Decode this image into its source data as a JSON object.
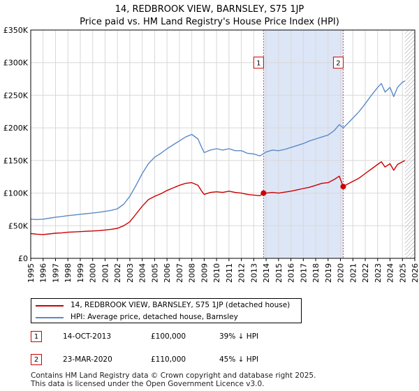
{
  "header": {
    "title_line1": "14, REDBROOK VIEW, BARNSLEY, S75 1JP",
    "title_line2": "Price paid vs. HM Land Registry's House Price Index (HPI)"
  },
  "colors": {
    "red": "#cc0000",
    "blue": "#5b8ac6",
    "shade": "#dde6f7",
    "grid": "#d8d8d8",
    "hatch": "#999999"
  },
  "chart_data": {
    "type": "line",
    "title": "Price paid vs. HM Land Registry's House Price Index (HPI)",
    "xlabel": "",
    "ylabel": "",
    "xlim": [
      1995,
      2026
    ],
    "ylim": [
      0,
      350000
    ],
    "x_ticks": [
      "1995",
      "1996",
      "1997",
      "1998",
      "1999",
      "2000",
      "2001",
      "2002",
      "2003",
      "2004",
      "2005",
      "2006",
      "2007",
      "2008",
      "2009",
      "2010",
      "2011",
      "2012",
      "2013",
      "2014",
      "2015",
      "2016",
      "2017",
      "2018",
      "2019",
      "2020",
      "2021",
      "2022",
      "2023",
      "2024",
      "2025",
      "2026"
    ],
    "y_ticks": [
      {
        "value": 0,
        "label": "£0"
      },
      {
        "value": 50000,
        "label": "£50K"
      },
      {
        "value": 100000,
        "label": "£100K"
      },
      {
        "value": 150000,
        "label": "£150K"
      },
      {
        "value": 200000,
        "label": "£200K"
      },
      {
        "value": 250000,
        "label": "£250K"
      },
      {
        "value": 300000,
        "label": "£300K"
      },
      {
        "value": 350000,
        "label": "£350K"
      }
    ],
    "grid": true,
    "shaded_period": [
      2013.79,
      2020.22
    ],
    "hatched_from": 2025.2,
    "series": [
      {
        "name": "14, REDBROOK VIEW, BARNSLEY, S75 1JP (detached house)",
        "color": "#cc0000",
        "points": [
          [
            1995.0,
            38000
          ],
          [
            1995.5,
            37000
          ],
          [
            1996.0,
            36500
          ],
          [
            1996.5,
            37500
          ],
          [
            1997.0,
            38500
          ],
          [
            1997.5,
            39000
          ],
          [
            1998.0,
            40000
          ],
          [
            1998.5,
            40500
          ],
          [
            1999.0,
            41000
          ],
          [
            1999.5,
            41500
          ],
          [
            2000.0,
            42000
          ],
          [
            2000.5,
            42500
          ],
          [
            2001.0,
            43500
          ],
          [
            2001.5,
            44500
          ],
          [
            2002.0,
            46000
          ],
          [
            2002.5,
            50000
          ],
          [
            2003.0,
            56000
          ],
          [
            2003.5,
            68000
          ],
          [
            2004.0,
            80000
          ],
          [
            2004.5,
            90000
          ],
          [
            2005.0,
            95000
          ],
          [
            2005.5,
            99000
          ],
          [
            2006.0,
            104000
          ],
          [
            2006.5,
            108000
          ],
          [
            2007.0,
            112000
          ],
          [
            2007.5,
            115000
          ],
          [
            2008.0,
            116000
          ],
          [
            2008.5,
            112000
          ],
          [
            2008.8,
            103000
          ],
          [
            2009.0,
            98000
          ],
          [
            2009.5,
            101000
          ],
          [
            2010.0,
            102000
          ],
          [
            2010.5,
            101000
          ],
          [
            2011.0,
            103000
          ],
          [
            2011.5,
            101000
          ],
          [
            2012.0,
            100000
          ],
          [
            2012.5,
            98000
          ],
          [
            2013.0,
            97000
          ],
          [
            2013.5,
            96000
          ],
          [
            2013.79,
            100000
          ],
          [
            2014.0,
            100000
          ],
          [
            2014.5,
            101000
          ],
          [
            2015.0,
            100000
          ],
          [
            2015.5,
            101500
          ],
          [
            2016.0,
            103000
          ],
          [
            2016.5,
            105000
          ],
          [
            2017.0,
            107000
          ],
          [
            2017.5,
            109000
          ],
          [
            2018.0,
            112000
          ],
          [
            2018.5,
            115000
          ],
          [
            2019.0,
            116000
          ],
          [
            2019.5,
            121000
          ],
          [
            2019.9,
            126000
          ],
          [
            2020.22,
            110000
          ],
          [
            2020.5,
            113000
          ],
          [
            2021.0,
            118000
          ],
          [
            2021.5,
            123000
          ],
          [
            2022.0,
            130000
          ],
          [
            2022.5,
            137000
          ],
          [
            2023.0,
            144000
          ],
          [
            2023.3,
            148000
          ],
          [
            2023.6,
            140000
          ],
          [
            2024.0,
            145000
          ],
          [
            2024.3,
            135000
          ],
          [
            2024.6,
            144000
          ],
          [
            2025.0,
            148000
          ],
          [
            2025.2,
            150000
          ]
        ]
      },
      {
        "name": "HPI: Average price, detached house, Barnsley",
        "color": "#5b8ac6",
        "points": [
          [
            1995.0,
            60000
          ],
          [
            1995.5,
            59500
          ],
          [
            1996.0,
            60000
          ],
          [
            1996.5,
            61500
          ],
          [
            1997.0,
            63000
          ],
          [
            1997.5,
            64000
          ],
          [
            1998.0,
            65500
          ],
          [
            1998.5,
            66500
          ],
          [
            1999.0,
            67500
          ],
          [
            1999.5,
            68500
          ],
          [
            2000.0,
            69500
          ],
          [
            2000.5,
            70500
          ],
          [
            2001.0,
            72000
          ],
          [
            2001.5,
            73500
          ],
          [
            2002.0,
            76000
          ],
          [
            2002.5,
            83000
          ],
          [
            2003.0,
            95000
          ],
          [
            2003.5,
            112000
          ],
          [
            2004.0,
            130000
          ],
          [
            2004.5,
            145000
          ],
          [
            2005.0,
            155000
          ],
          [
            2005.5,
            161000
          ],
          [
            2006.0,
            168000
          ],
          [
            2006.5,
            174000
          ],
          [
            2007.0,
            180000
          ],
          [
            2007.5,
            186000
          ],
          [
            2008.0,
            190000
          ],
          [
            2008.5,
            183000
          ],
          [
            2008.8,
            170000
          ],
          [
            2009.0,
            162000
          ],
          [
            2009.5,
            166000
          ],
          [
            2010.0,
            168000
          ],
          [
            2010.5,
            166000
          ],
          [
            2011.0,
            168000
          ],
          [
            2011.5,
            165000
          ],
          [
            2012.0,
            165000
          ],
          [
            2012.5,
            161000
          ],
          [
            2013.0,
            160000
          ],
          [
            2013.5,
            157000
          ],
          [
            2014.0,
            163000
          ],
          [
            2014.5,
            166000
          ],
          [
            2015.0,
            165000
          ],
          [
            2015.5,
            167000
          ],
          [
            2016.0,
            170000
          ],
          [
            2016.5,
            173000
          ],
          [
            2017.0,
            176000
          ],
          [
            2017.5,
            180000
          ],
          [
            2018.0,
            183000
          ],
          [
            2018.5,
            186000
          ],
          [
            2019.0,
            189000
          ],
          [
            2019.5,
            196000
          ],
          [
            2019.9,
            205000
          ],
          [
            2020.22,
            200000
          ],
          [
            2020.5,
            205000
          ],
          [
            2021.0,
            215000
          ],
          [
            2021.5,
            225000
          ],
          [
            2022.0,
            237000
          ],
          [
            2022.5,
            250000
          ],
          [
            2023.0,
            262000
          ],
          [
            2023.3,
            268000
          ],
          [
            2023.6,
            255000
          ],
          [
            2024.0,
            262000
          ],
          [
            2024.3,
            248000
          ],
          [
            2024.6,
            262000
          ],
          [
            2025.0,
            270000
          ],
          [
            2025.2,
            272000
          ]
        ]
      }
    ],
    "markers": [
      {
        "label": "1",
        "x": 2013.79,
        "y": 100000
      },
      {
        "label": "2",
        "x": 2020.22,
        "y": 110000
      }
    ]
  },
  "legend": {
    "entries": [
      {
        "label": "14, REDBROOK VIEW, BARNSLEY, S75 1JP (detached house)",
        "color": "#cc0000"
      },
      {
        "label": "HPI: Average price, detached house, Barnsley",
        "color": "#5b8ac6"
      }
    ]
  },
  "transactions": [
    {
      "num": "1",
      "date": "14-OCT-2013",
      "price": "£100,000",
      "hpi": "39% ↓ HPI"
    },
    {
      "num": "2",
      "date": "23-MAR-2020",
      "price": "£110,000",
      "hpi": "45% ↓ HPI"
    }
  ],
  "footer": {
    "line1": "Contains HM Land Registry data © Crown copyright and database right 2025.",
    "line2": "This data is licensed under the Open Government Licence v3.0."
  }
}
